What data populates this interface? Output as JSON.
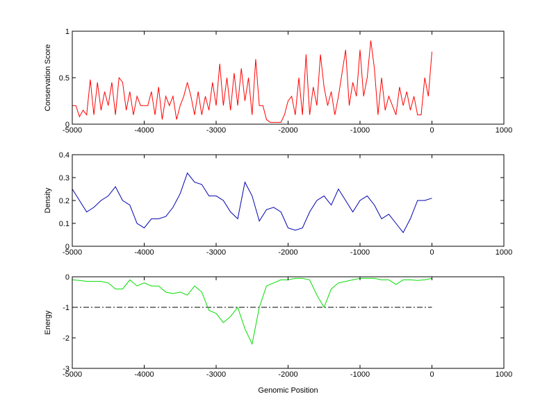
{
  "chart_data": [
    {
      "type": "line",
      "ylabel": "Conservation Score",
      "color": "#ff0000",
      "x": [
        -5000,
        -4950,
        -4900,
        -4850,
        -4800,
        -4750,
        -4700,
        -4650,
        -4600,
        -4550,
        -4500,
        -4450,
        -4400,
        -4350,
        -4300,
        -4250,
        -4200,
        -4150,
        -4100,
        -4050,
        -4000,
        -3950,
        -3900,
        -3850,
        -3800,
        -3750,
        -3700,
        -3650,
        -3600,
        -3550,
        -3500,
        -3450,
        -3400,
        -3350,
        -3300,
        -3250,
        -3200,
        -3150,
        -3100,
        -3050,
        -3000,
        -2950,
        -2900,
        -2850,
        -2800,
        -2750,
        -2700,
        -2650,
        -2600,
        -2550,
        -2500,
        -2450,
        -2400,
        -2350,
        -2300,
        -2250,
        -2200,
        -2150,
        -2100,
        -2050,
        -2000,
        -1950,
        -1900,
        -1850,
        -1800,
        -1750,
        -1700,
        -1650,
        -1600,
        -1550,
        -1500,
        -1450,
        -1400,
        -1350,
        -1300,
        -1250,
        -1200,
        -1150,
        -1100,
        -1050,
        -1000,
        -950,
        -900,
        -850,
        -800,
        -750,
        -700,
        -650,
        -600,
        -550,
        -500,
        -450,
        -400,
        -350,
        -300,
        -250,
        -200,
        -150,
        -100,
        -50,
        0
      ],
      "values": [
        0.2,
        0.2,
        0.08,
        0.15,
        0.1,
        0.48,
        0.1,
        0.45,
        0.15,
        0.35,
        0.2,
        0.45,
        0.1,
        0.5,
        0.45,
        0.15,
        0.35,
        0.1,
        0.3,
        0.2,
        0.2,
        0.2,
        0.35,
        0.1,
        0.4,
        0.05,
        0.3,
        0.2,
        0.3,
        0.05,
        0.2,
        0.3,
        0.45,
        0.3,
        0.1,
        0.35,
        0.1,
        0.3,
        0.15,
        0.45,
        0.2,
        0.65,
        0.2,
        0.5,
        0.15,
        0.55,
        0.2,
        0.6,
        0.25,
        0.5,
        0.1,
        0.7,
        0.2,
        0.2,
        0.05,
        0.02,
        0.02,
        0.02,
        0.02,
        0.1,
        0.25,
        0.3,
        0.1,
        0.5,
        0.1,
        0.75,
        0.1,
        0.4,
        0.2,
        0.75,
        0.4,
        0.2,
        0.35,
        0.1,
        0.3,
        0.55,
        0.8,
        0.2,
        0.45,
        0.3,
        0.8,
        0.3,
        0.5,
        0.9,
        0.6,
        0.1,
        0.5,
        0.15,
        0.3,
        0.2,
        0.1,
        0.4,
        0.2,
        0.35,
        0.15,
        0.3,
        0.1,
        0.1,
        0.5,
        0.3,
        0.78
      ],
      "xlim": [
        -5000,
        1000
      ],
      "xticks": [
        -5000,
        -4000,
        -3000,
        -2000,
        -1000,
        0,
        1000
      ],
      "ylim": [
        0,
        1
      ],
      "yticks": [
        0,
        0.5,
        1
      ]
    },
    {
      "type": "line",
      "ylabel": "Density",
      "color": "#0000b0",
      "x": [
        -5000,
        -4900,
        -4800,
        -4700,
        -4600,
        -4500,
        -4400,
        -4300,
        -4200,
        -4100,
        -4000,
        -3900,
        -3800,
        -3700,
        -3600,
        -3500,
        -3400,
        -3300,
        -3200,
        -3100,
        -3000,
        -2900,
        -2800,
        -2700,
        -2600,
        -2500,
        -2400,
        -2300,
        -2200,
        -2100,
        -2000,
        -1900,
        -1800,
        -1700,
        -1600,
        -1500,
        -1400,
        -1300,
        -1200,
        -1100,
        -1000,
        -900,
        -800,
        -700,
        -600,
        -500,
        -400,
        -300,
        -200,
        -100,
        0
      ],
      "values": [
        0.25,
        0.2,
        0.15,
        0.17,
        0.2,
        0.22,
        0.26,
        0.2,
        0.18,
        0.1,
        0.08,
        0.12,
        0.12,
        0.13,
        0.17,
        0.23,
        0.32,
        0.28,
        0.27,
        0.22,
        0.22,
        0.2,
        0.15,
        0.12,
        0.28,
        0.22,
        0.11,
        0.16,
        0.17,
        0.15,
        0.08,
        0.07,
        0.08,
        0.15,
        0.2,
        0.22,
        0.18,
        0.25,
        0.2,
        0.15,
        0.2,
        0.22,
        0.18,
        0.12,
        0.14,
        0.1,
        0.06,
        0.12,
        0.2,
        0.2,
        0.21
      ],
      "xlim": [
        -5000,
        1000
      ],
      "xticks": [
        -5000,
        -4000,
        -3000,
        -2000,
        -1000,
        0,
        1000
      ],
      "ylim": [
        0,
        0.4
      ],
      "yticks": [
        0,
        0.1,
        0.2,
        0.3,
        0.4
      ]
    },
    {
      "type": "line",
      "ylabel": "Energy",
      "xlabel": "Genomic Position",
      "color": "#00dd00",
      "x": [
        -5000,
        -4900,
        -4800,
        -4700,
        -4600,
        -4500,
        -4400,
        -4300,
        -4200,
        -4100,
        -4000,
        -3900,
        -3800,
        -3700,
        -3600,
        -3500,
        -3400,
        -3300,
        -3200,
        -3100,
        -3000,
        -2900,
        -2800,
        -2700,
        -2600,
        -2500,
        -2400,
        -2300,
        -2200,
        -2100,
        -2000,
        -1900,
        -1800,
        -1700,
        -1600,
        -1500,
        -1400,
        -1300,
        -1200,
        -1100,
        -1000,
        -900,
        -800,
        -700,
        -600,
        -500,
        -400,
        -300,
        -200,
        -100,
        0
      ],
      "values": [
        -0.1,
        -0.12,
        -0.15,
        -0.15,
        -0.15,
        -0.2,
        -0.4,
        -0.4,
        -0.1,
        -0.3,
        -0.2,
        -0.3,
        -0.3,
        -0.5,
        -0.55,
        -0.5,
        -0.6,
        -0.3,
        -0.5,
        -1.1,
        -1.2,
        -1.5,
        -1.3,
        -1.0,
        -1.7,
        -2.2,
        -1.0,
        -0.3,
        -0.2,
        -0.1,
        -0.1,
        -0.05,
        -0.05,
        -0.1,
        -0.6,
        -1.0,
        -0.4,
        -0.2,
        -0.15,
        -0.1,
        -0.05,
        -0.05,
        -0.05,
        -0.1,
        -0.1,
        -0.25,
        -0.1,
        -0.1,
        -0.12,
        -0.1,
        -0.05
      ],
      "hline": {
        "value": -1,
        "color": "#000000",
        "style": "dashdot",
        "from": -5000,
        "to": 0
      },
      "xlim": [
        -5000,
        1000
      ],
      "xticks": [
        -5000,
        -4000,
        -3000,
        -2000,
        -1000,
        0,
        1000
      ],
      "ylim": [
        -3,
        0
      ],
      "yticks": [
        -3,
        -2,
        -1,
        0
      ]
    }
  ]
}
